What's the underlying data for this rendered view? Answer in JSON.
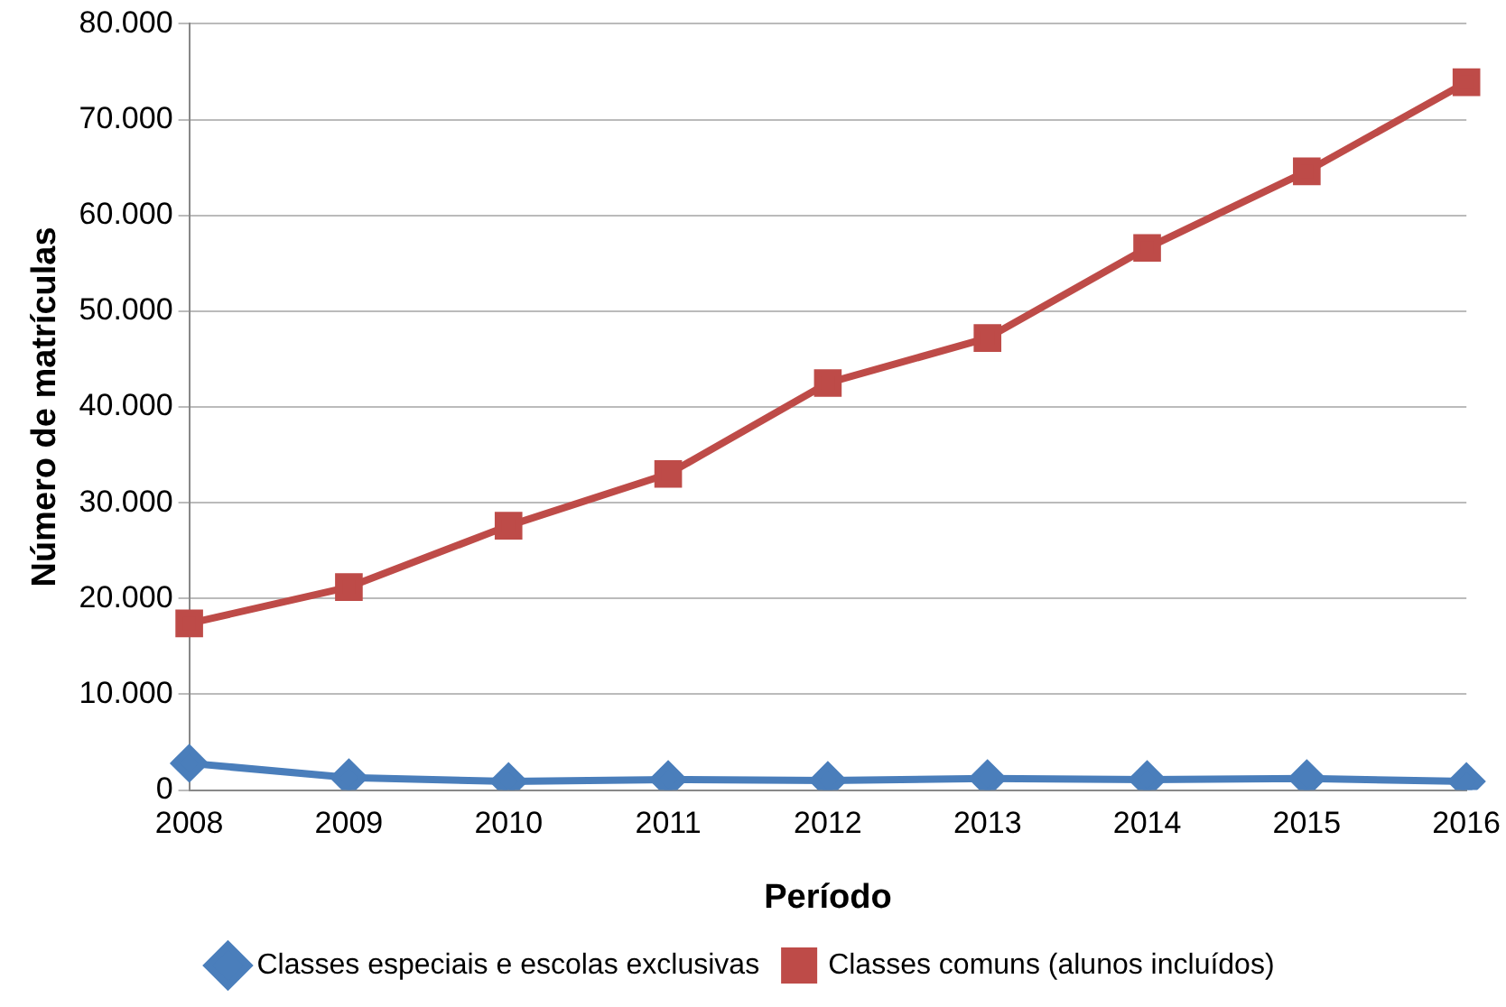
{
  "chart_data": {
    "type": "line",
    "xlabel": "Período",
    "ylabel": "Número de matrículas",
    "categories": [
      "2008",
      "2009",
      "2010",
      "2011",
      "2012",
      "2013",
      "2014",
      "2015",
      "2016"
    ],
    "series": [
      {
        "name": "Classes especiais e escolas exclusivas",
        "color": "#4a7ebb",
        "marker": "diamond",
        "values": [
          2800,
          1300,
          900,
          1100,
          1000,
          1200,
          1100,
          1200,
          900
        ]
      },
      {
        "name": "Classes comuns (alunos incluídos)",
        "color": "#be4b48",
        "marker": "square",
        "values": [
          17400,
          21200,
          27600,
          33000,
          42500,
          47200,
          56600,
          64600,
          73900
        ]
      }
    ],
    "ylim": [
      0,
      80000
    ],
    "yticks": [
      {
        "value": 0,
        "label": "0"
      },
      {
        "value": 10000,
        "label": "10.000"
      },
      {
        "value": 20000,
        "label": "20.000"
      },
      {
        "value": 30000,
        "label": "30.000"
      },
      {
        "value": 40000,
        "label": "40.000"
      },
      {
        "value": 50000,
        "label": "50.000"
      },
      {
        "value": 60000,
        "label": "60.000"
      },
      {
        "value": 70000,
        "label": "70.000"
      },
      {
        "value": 80000,
        "label": "80.000"
      }
    ],
    "grid": "y",
    "legend": "bottom",
    "line_style": "solid"
  }
}
